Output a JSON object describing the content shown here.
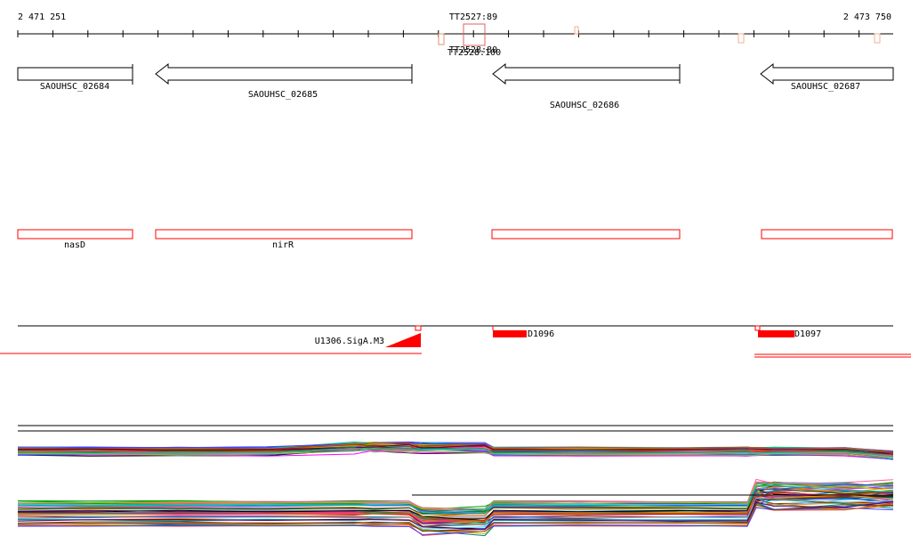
{
  "ruler": {
    "start_label": "2 471 251",
    "end_label": "2 473 750",
    "marker_label": "TT2527:89",
    "marker_sub_label_a": "TT2528:80",
    "marker_sub_label_b": "TT2528:100"
  },
  "genes": [
    {
      "id": "SAOUHSC_02684",
      "strand": "+"
    },
    {
      "id": "SAOUHSC_02685",
      "strand": "-"
    },
    {
      "id": "SAOUHSC_02686",
      "strand": "-"
    },
    {
      "id": "SAOUHSC_02687",
      "strand": "-"
    }
  ],
  "gene_names": [
    {
      "name": "nasD"
    },
    {
      "name": "nirR"
    },
    {
      "name": ""
    },
    {
      "name": ""
    }
  ],
  "features": [
    {
      "label": "U1306.SigA.M3"
    },
    {
      "label": "D1096"
    },
    {
      "label": "D1097"
    }
  ],
  "colors": {
    "accent": "#ff0000",
    "outline": "#000000",
    "background": "#ffffff"
  }
}
